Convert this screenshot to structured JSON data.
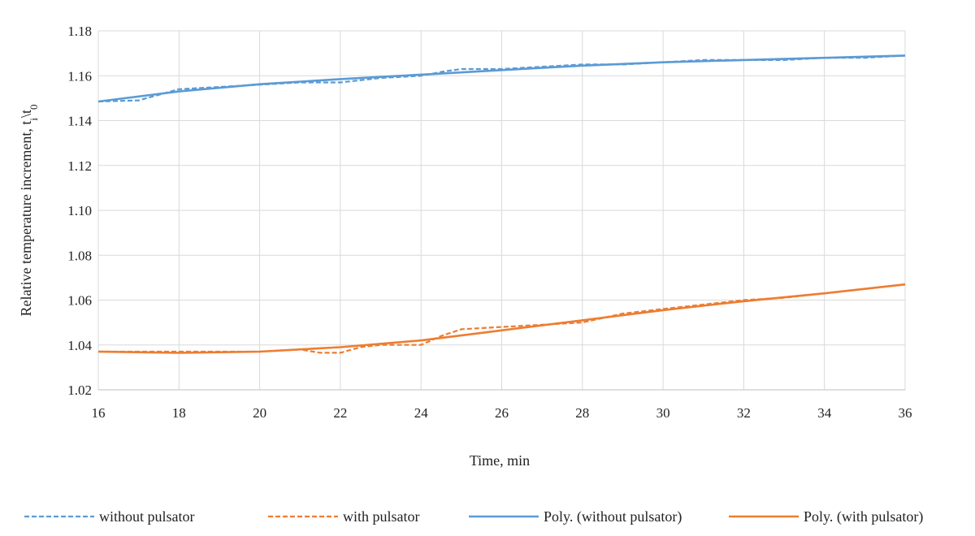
{
  "chart_data": {
    "type": "line",
    "xlabel": "Time, min",
    "ylabel": {
      "main": "Relative temperature increment, t",
      "sub1": "i",
      "mid": "\\t",
      "sub2": "0"
    },
    "xlim": [
      16,
      36
    ],
    "ylim": [
      1.02,
      1.18
    ],
    "xticks": [
      "16",
      "18",
      "20",
      "22",
      "24",
      "26",
      "28",
      "30",
      "32",
      "34",
      "36"
    ],
    "yticks": [
      "1.02",
      "1.04",
      "1.06",
      "1.08",
      "1.10",
      "1.12",
      "1.14",
      "1.16",
      "1.18"
    ],
    "grid": true,
    "legend_position": "bottom",
    "series": [
      {
        "name": "without pulsator",
        "color": "#5b9bd5",
        "style": "dashed",
        "x": [
          16,
          17,
          18,
          19,
          20,
          21,
          22,
          23,
          24,
          24.6,
          25,
          26,
          27,
          28,
          29,
          30,
          31,
          32,
          33,
          34,
          35,
          36
        ],
        "y": [
          1.1485,
          1.149,
          1.154,
          1.155,
          1.156,
          1.157,
          1.157,
          1.159,
          1.16,
          1.162,
          1.163,
          1.163,
          1.164,
          1.165,
          1.165,
          1.166,
          1.167,
          1.167,
          1.167,
          1.168,
          1.168,
          1.169
        ]
      },
      {
        "name": "with pulsator",
        "color": "#ed7d31",
        "style": "dashed",
        "x": [
          16,
          17,
          18,
          19,
          20,
          21,
          21.5,
          22,
          22.5,
          23,
          24,
          24.5,
          25,
          26,
          27,
          28,
          29,
          30,
          31,
          32,
          33,
          34,
          35,
          36
        ],
        "y": [
          1.037,
          1.037,
          1.037,
          1.037,
          1.037,
          1.038,
          1.0365,
          1.0365,
          1.039,
          1.04,
          1.04,
          1.044,
          1.047,
          1.048,
          1.049,
          1.05,
          1.054,
          1.056,
          1.058,
          1.06,
          1.061,
          1.063,
          1.065,
          1.067
        ]
      },
      {
        "name": "Poly. (without pulsator)",
        "color": "#5b9bd5",
        "style": "solid",
        "x": [
          16,
          18,
          20,
          22,
          24,
          26,
          28,
          30,
          32,
          34,
          36
        ],
        "y": [
          1.1485,
          1.153,
          1.1562,
          1.1585,
          1.1605,
          1.1625,
          1.1645,
          1.166,
          1.167,
          1.168,
          1.169
        ]
      },
      {
        "name": "Poly. (with pulsator)",
        "color": "#ed7d31",
        "style": "solid",
        "x": [
          16,
          18,
          20,
          22,
          24,
          26,
          28,
          30,
          32,
          34,
          36
        ],
        "y": [
          1.037,
          1.0365,
          1.037,
          1.039,
          1.042,
          1.0465,
          1.051,
          1.0555,
          1.0595,
          1.063,
          1.067
        ]
      }
    ]
  }
}
